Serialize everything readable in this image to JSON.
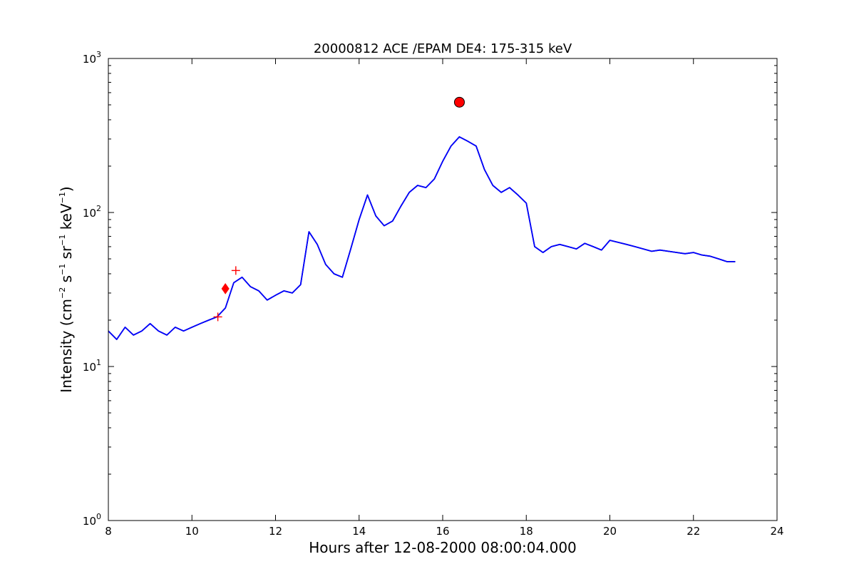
{
  "chart_data": {
    "type": "line",
    "title": "20000812 ACE /EPAM DE4: 175-315 keV",
    "xlabel": "Hours after 12-08-2000 08:00:04.000",
    "ylabel": {
      "parts": [
        "Intensity (cm",
        "−2",
        " s",
        "−1",
        " sr",
        "−1",
        " keV",
        "−1",
        ")"
      ]
    },
    "xlim": [
      8,
      24
    ],
    "ylim": [
      1,
      1000
    ],
    "yscale": "log",
    "x_ticks": [
      "8",
      "10",
      "12",
      "14",
      "16",
      "18",
      "20",
      "22",
      "24"
    ],
    "x_tick_values": [
      8,
      10,
      12,
      14,
      16,
      18,
      20,
      22,
      24
    ],
    "y_ticks": [
      {
        "base": "10",
        "exp": "0",
        "value": 1
      },
      {
        "base": "10",
        "exp": "1",
        "value": 10
      },
      {
        "base": "10",
        "exp": "2",
        "value": 100
      },
      {
        "base": "10",
        "exp": "3",
        "value": 1000
      }
    ],
    "grid": false,
    "series": [
      {
        "style": "raw",
        "color": "#000000",
        "x": [
          8.0,
          8.2,
          8.4,
          8.6,
          8.8,
          9.0,
          9.2,
          9.4,
          9.6,
          9.8,
          10.0,
          10.2,
          10.4,
          10.6,
          10.8,
          11.0,
          11.2,
          11.4,
          11.6,
          11.8,
          12.0,
          12.2,
          12.4,
          12.6,
          12.8,
          13.0,
          13.2,
          13.4,
          13.6,
          13.8,
          14.0,
          14.2,
          14.4,
          14.6,
          14.8,
          15.0,
          15.2,
          15.4,
          15.6,
          15.8,
          16.0,
          16.2,
          16.4,
          16.6,
          16.8,
          17.0,
          17.2,
          17.4,
          17.6,
          17.8,
          18.0,
          18.2,
          18.4,
          18.6,
          18.8,
          19.0,
          19.2,
          19.4,
          19.6,
          19.8,
          20.0,
          20.2,
          20.4,
          20.6,
          20.8,
          21.0,
          21.2,
          21.4,
          21.6,
          21.8,
          22.0,
          22.2,
          22.4,
          22.6,
          22.8,
          23.0
        ],
        "values": [
          17,
          15,
          18,
          16,
          17,
          19,
          17,
          16,
          18,
          17,
          18,
          19,
          20,
          21,
          24,
          35,
          38,
          33,
          31,
          27,
          29,
          31,
          30,
          34,
          75,
          62,
          46,
          40,
          38,
          58,
          90,
          130,
          95,
          82,
          88,
          110,
          135,
          150,
          145,
          165,
          215,
          270,
          310,
          290,
          270,
          190,
          150,
          135,
          145,
          130,
          115,
          60,
          55,
          60,
          62,
          60,
          58,
          63,
          60,
          57,
          66,
          64,
          62,
          60,
          58,
          56,
          57,
          56,
          55,
          54,
          55,
          53,
          52,
          50,
          48,
          48
        ]
      },
      {
        "style": "smoothed",
        "color": "#0000ff",
        "x": [
          8.0,
          8.2,
          8.4,
          8.6,
          8.8,
          9.0,
          9.2,
          9.4,
          9.6,
          9.8,
          10.0,
          10.2,
          10.4,
          10.6,
          10.8,
          11.0,
          11.2,
          11.4,
          11.6,
          11.8,
          12.0,
          12.2,
          12.4,
          12.6,
          12.8,
          13.0,
          13.2,
          13.4,
          13.6,
          13.8,
          14.0,
          14.2,
          14.4,
          14.6,
          14.8,
          15.0,
          15.2,
          15.4,
          15.6,
          15.8,
          16.0,
          16.2,
          16.4,
          16.6,
          16.8,
          17.0,
          17.2,
          17.4,
          17.6,
          17.8,
          18.0,
          18.2,
          18.4,
          18.6,
          18.8,
          19.0,
          19.2,
          19.4,
          19.6,
          19.8,
          20.0,
          20.2,
          20.4,
          20.6,
          20.8,
          21.0,
          21.2,
          21.4,
          21.6,
          21.8,
          22.0,
          22.2,
          22.4,
          22.6,
          22.8,
          23.0
        ],
        "values": [
          17,
          15,
          18,
          16,
          17,
          19,
          17,
          16,
          18,
          17,
          18,
          19,
          20,
          21,
          24,
          35,
          38,
          33,
          31,
          27,
          29,
          31,
          30,
          34,
          75,
          62,
          46,
          40,
          38,
          58,
          90,
          130,
          95,
          82,
          88,
          110,
          135,
          150,
          145,
          165,
          215,
          270,
          310,
          290,
          270,
          190,
          150,
          135,
          145,
          130,
          115,
          60,
          55,
          60,
          62,
          60,
          58,
          63,
          60,
          57,
          66,
          64,
          62,
          60,
          58,
          56,
          57,
          56,
          55,
          54,
          55,
          53,
          52,
          50,
          48,
          48
        ]
      }
    ],
    "markers": [
      {
        "type": "plus",
        "color": "#ff0000",
        "x": 10.62,
        "y": 21
      },
      {
        "type": "diamond",
        "color": "#ff0000",
        "x": 10.8,
        "y": 32
      },
      {
        "type": "plus",
        "color": "#ff0000",
        "x": 11.05,
        "y": 42
      },
      {
        "type": "circle",
        "color": "#ff0000",
        "x": 16.4,
        "y": 520
      }
    ]
  }
}
